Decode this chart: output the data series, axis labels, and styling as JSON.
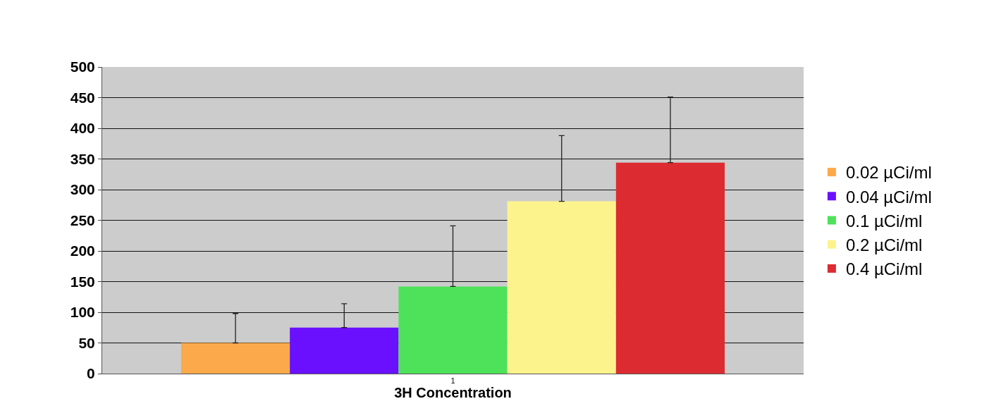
{
  "chart_data": {
    "type": "bar",
    "xlabel": "3H Concentration",
    "categories": [
      "1"
    ],
    "series": [
      {
        "name": "0.02 µCi/ml",
        "color": "#fba94a",
        "values": [
          50
        ],
        "errors": [
          [
            50,
            98
          ]
        ]
      },
      {
        "name": "0.04 µCi/ml",
        "color": "#6a10fe",
        "values": [
          75
        ],
        "errors": [
          [
            75,
            114
          ]
        ]
      },
      {
        "name": "0.1 µCi/ml",
        "color": "#4ee25a",
        "values": [
          142
        ],
        "errors": [
          [
            142,
            241
          ]
        ]
      },
      {
        "name": "0.2 µCi/ml",
        "color": "#fdf38d",
        "values": [
          281
        ],
        "errors": [
          [
            281,
            388
          ]
        ]
      },
      {
        "name": "0.4 µCi/ml",
        "color": "#dc2c32",
        "values": [
          344
        ],
        "errors": [
          [
            344,
            451
          ]
        ]
      }
    ],
    "ylim": [
      0,
      500
    ],
    "yticks": [
      0,
      50,
      100,
      150,
      200,
      250,
      300,
      350,
      400,
      450,
      500
    ],
    "grid": "y",
    "legend": "right"
  }
}
